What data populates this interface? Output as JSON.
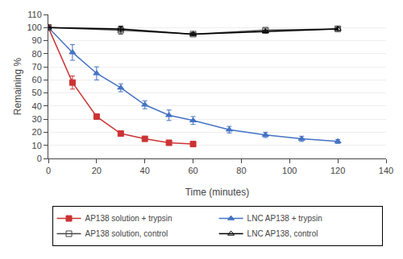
{
  "chart_data": {
    "type": "line",
    "xlabel": "Time (minutes)",
    "ylabel": "Remaining %",
    "series": [
      {
        "name": "AP138 solution + trypsin",
        "color": "#cc3333",
        "marker": "square",
        "x": [
          0,
          10,
          20,
          30,
          40,
          50,
          60
        ],
        "values": [
          100,
          58,
          32,
          19,
          15,
          12,
          11
        ],
        "yerr": [
          0,
          5,
          2,
          1.5,
          1.5,
          1.5,
          1
        ]
      },
      {
        "name": "LNC AP138 + trypsin",
        "color": "#4472c4",
        "marker": "triangle-up",
        "x": [
          0,
          10,
          20,
          30,
          40,
          50,
          60,
          75,
          90,
          105,
          120
        ],
        "values": [
          100,
          81,
          65,
          54,
          41,
          33,
          29,
          22,
          18,
          15,
          13
        ],
        "yerr": [
          0,
          6,
          5,
          3,
          3,
          4,
          3,
          2.5,
          2,
          2,
          1.5
        ]
      },
      {
        "name": "AP138 solution, control",
        "color": "#444444",
        "marker": "square-open",
        "x": [
          0,
          30,
          60,
          90,
          120
        ],
        "values": [
          100,
          98,
          95,
          98,
          99
        ],
        "yerr": [
          0,
          3,
          1,
          1.5,
          2
        ]
      },
      {
        "name": "LNC AP138, control",
        "color": "#000000",
        "marker": "triangle-up-open",
        "x": [
          0,
          30,
          60,
          90,
          120
        ],
        "values": [
          100,
          99,
          95,
          97,
          99
        ],
        "yerr": [
          0,
          2,
          1,
          1,
          1
        ]
      }
    ],
    "xlim": [
      0,
      140
    ],
    "ylim": [
      0,
      110
    ],
    "xticks": [
      0,
      20,
      40,
      60,
      80,
      100,
      120,
      140
    ],
    "yticks": [
      0,
      10,
      20,
      30,
      40,
      50,
      60,
      70,
      80,
      90,
      100,
      110
    ],
    "grid": "y",
    "legend": "bottom"
  }
}
